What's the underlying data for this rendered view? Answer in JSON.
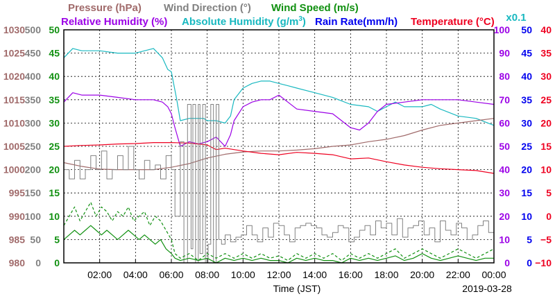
{
  "colors": {
    "pressure": "#a06a6a",
    "wind_direction": "#808080",
    "wind_speed": "#109010",
    "relative_humidity": "#9b00e6",
    "absolute_humidity": "#18b8c0",
    "rain_rate": "#0000ee",
    "temperature": "#ee0020",
    "grid": "#000000"
  },
  "legend": {
    "pressure": "Pressure (hPa)",
    "wind_direction": "Wind Direction (°)",
    "wind_speed": "Wind Speed (m/s)",
    "relative_humidity": "Relative Humidity (%)",
    "absolute_humidity_prefix": "Absolute Humidity (g/m",
    "absolute_humidity_sup": "3",
    "absolute_humidity_suffix": ")",
    "rain_rate": "Rain Rate(mm/h)",
    "temperature": "Temperature  (°C)",
    "rain_multiplier": "x0.1"
  },
  "x_title": "Time (JST)",
  "date_label": "2019-03-28",
  "chart_data": {
    "type": "line",
    "x_unit": "hour",
    "xlim": [
      0,
      24
    ],
    "x_ticks": [
      2,
      4,
      6,
      8,
      10,
      12,
      14,
      16,
      18,
      20,
      22,
      24
    ],
    "x_tick_labels": [
      "02:00",
      "04:00",
      "06:00",
      "08:00",
      "10:00",
      "12:00",
      "14:00",
      "16:00",
      "18:00",
      "20:00",
      "22:00",
      "00:00"
    ],
    "grid": true,
    "axes": {
      "pressure": {
        "side": "left",
        "range": [
          980,
          1030
        ],
        "ticks": [
          "980",
          "985",
          "990",
          "995",
          "1000",
          "1005",
          "1010",
          "1015",
          "1020",
          "1025",
          "1030"
        ]
      },
      "wind_direction": {
        "side": "left",
        "range": [
          0,
          500
        ],
        "ticks": [
          "0",
          "50",
          "100",
          "150",
          "200",
          "250",
          "300",
          "350",
          "400",
          "450",
          "500"
        ]
      },
      "wind_speed": {
        "side": "left",
        "range": [
          0,
          50
        ],
        "ticks": [
          "0",
          "5",
          "10",
          "15",
          "20",
          "25",
          "30",
          "35",
          "40",
          "45",
          "50"
        ]
      },
      "relative_humidity": {
        "side": "right",
        "range": [
          0,
          100
        ],
        "ticks": [
          "0",
          "10",
          "20",
          "30",
          "40",
          "50",
          "60",
          "70",
          "80",
          "90",
          "100"
        ]
      },
      "rain_rate": {
        "side": "right",
        "range": [
          0,
          50
        ],
        "ticks": [
          "0",
          "5",
          "10",
          "15",
          "20",
          "25",
          "30",
          "35",
          "40",
          "45",
          "50"
        ]
      },
      "temperature": {
        "side": "right",
        "range": [
          -10,
          40
        ],
        "ticks": [
          "−10",
          "−5",
          "0",
          "5",
          "10",
          "15",
          "20",
          "25",
          "30",
          "35",
          "40"
        ]
      }
    },
    "series": [
      {
        "name": "Absolute Humidity (g/m3)",
        "key": "absolute_humidity",
        "axis": "relative_humidity",
        "style": "solid",
        "x": [
          0,
          0.5,
          1,
          2,
          3,
          4,
          5,
          5.5,
          5.8,
          6,
          6.3,
          6.5,
          7,
          7.5,
          7.8,
          8,
          8.5,
          9,
          9.3,
          9.5,
          10,
          10.5,
          11,
          11.5,
          12,
          12.5,
          13,
          14,
          15,
          16,
          17,
          17.5,
          18,
          18.5,
          19,
          20,
          20.5,
          21,
          22,
          23,
          24
        ],
        "y": [
          88,
          92,
          91,
          91,
          90,
          90,
          92,
          88,
          83,
          82,
          70,
          61,
          62,
          62,
          62,
          61,
          61,
          60,
          63,
          70,
          75,
          77,
          78,
          78,
          77,
          76,
          75,
          73,
          71,
          68,
          67,
          65,
          67,
          69,
          67,
          67,
          68,
          66,
          63,
          62,
          59
        ]
      },
      {
        "name": "Relative Humidity (%)",
        "key": "relative_humidity",
        "axis": "relative_humidity",
        "style": "solid",
        "x": [
          0,
          0.5,
          1,
          2,
          3,
          4,
          5,
          5.5,
          5.8,
          6,
          6.2,
          6.5,
          7,
          7.5,
          8,
          8.5,
          9,
          9.3,
          9.5,
          10,
          10.5,
          11,
          11.5,
          12,
          12.5,
          13,
          14,
          15,
          15.5,
          16,
          16.5,
          17,
          17.5,
          18,
          19,
          20,
          21,
          22,
          23,
          24
        ],
        "y": [
          69,
          73,
          72,
          72,
          71,
          70,
          70,
          69,
          67,
          64,
          58,
          50,
          52,
          51,
          52,
          54,
          50,
          55,
          61,
          67,
          69,
          70,
          70,
          72,
          69,
          66,
          65,
          64,
          61,
          58,
          57,
          60,
          65,
          68,
          69,
          70,
          70,
          70,
          69,
          68
        ]
      },
      {
        "name": "Pressure (hPa)",
        "key": "pressure",
        "axis": "pressure",
        "style": "solid",
        "x": [
          0,
          1,
          2,
          3,
          4,
          5,
          6,
          7,
          8,
          9,
          10,
          11,
          12,
          13,
          14,
          15,
          16,
          17,
          18,
          19,
          20,
          21,
          22,
          23,
          24
        ],
        "y": [
          1001.5,
          1000.7,
          1000.1,
          1000,
          1000,
          1000,
          1000.5,
          1001.3,
          1002.5,
          1003.3,
          1003.8,
          1004,
          1004,
          1004.2,
          1004.5,
          1005,
          1005.3,
          1006,
          1006.5,
          1007.3,
          1008.5,
          1009.5,
          1010,
          1010.5,
          1011
        ]
      },
      {
        "name": "Temperature (°C)",
        "key": "temperature",
        "axis": "temperature",
        "style": "solid",
        "x": [
          0,
          1,
          2,
          3,
          4,
          5,
          6,
          7,
          8,
          8.5,
          9,
          10,
          11,
          12,
          13,
          14,
          15,
          16,
          17,
          18,
          19,
          20,
          21,
          22,
          23,
          24
        ],
        "y": [
          15,
          15.2,
          15.3,
          15.5,
          15.6,
          15.8,
          15.8,
          15.7,
          15.3,
          14.3,
          14.6,
          14,
          13.5,
          13.2,
          13.7,
          13.5,
          13.2,
          12.3,
          12.5,
          11.7,
          11,
          10.5,
          10.2,
          10,
          9.8,
          9.2
        ]
      },
      {
        "name": "Wind Direction (°)",
        "key": "wind_direction",
        "axis": "wind_direction",
        "style": "step",
        "x": [
          0,
          0.3,
          0.6,
          0.9,
          1.2,
          1.5,
          1.8,
          2.1,
          2.4,
          2.7,
          3,
          3.3,
          3.6,
          3.9,
          4.2,
          4.5,
          4.8,
          5.1,
          5.4,
          5.7,
          6,
          6.2,
          6.5,
          6.7,
          6.9,
          7.1,
          7.2,
          7.35,
          7.5,
          7.6,
          7.75,
          7.9,
          8.05,
          8.2,
          8.35,
          8.5,
          8.65,
          8.8,
          9,
          9.3,
          9.6,
          9.9,
          10.2,
          10.5,
          10.8,
          11.1,
          11.4,
          11.7,
          12,
          12.3,
          12.6,
          12.9,
          13.2,
          13.5,
          13.8,
          14.1,
          14.4,
          14.7,
          15,
          15.3,
          15.6,
          15.9,
          16.2,
          16.5,
          16.8,
          17.1,
          17.4,
          17.7,
          18,
          18.3,
          18.6,
          18.9,
          19.2,
          19.5,
          19.8,
          20.1,
          20.4,
          20.7,
          21,
          21.3,
          21.6,
          21.9,
          22.2,
          22.5,
          22.8,
          23.1,
          23.4,
          23.7,
          24
        ],
        "y": [
          200,
          180,
          220,
          180,
          200,
          230,
          200,
          240,
          180,
          200,
          230,
          200,
          250,
          200,
          180,
          220,
          200,
          210,
          180,
          230,
          200,
          100,
          260,
          0,
          340,
          30,
          340,
          0,
          340,
          20,
          340,
          0,
          40,
          340,
          0,
          340,
          50,
          40,
          60,
          45,
          55,
          60,
          80,
          60,
          45,
          75,
          55,
          85,
          80,
          60,
          45,
          75,
          80,
          85,
          80,
          75,
          60,
          55,
          65,
          80,
          75,
          45,
          55,
          70,
          80,
          60,
          90,
          75,
          85,
          60,
          95,
          55,
          75,
          80,
          90,
          60,
          75,
          45,
          90,
          70,
          60,
          85,
          75,
          50,
          60,
          80,
          90,
          65,
          85
        ]
      },
      {
        "name": "Wind Speed (m/s) max",
        "key": "wind_speed",
        "axis": "wind_speed",
        "style": "dashed",
        "x": [
          0,
          0.3,
          0.6,
          0.9,
          1.2,
          1.5,
          1.8,
          2.1,
          2.4,
          2.7,
          3,
          3.3,
          3.6,
          3.9,
          4.2,
          4.5,
          4.8,
          5.1,
          5.4,
          5.7,
          6,
          6.2,
          6.5,
          7,
          7.5,
          8,
          8.5,
          9,
          9.5,
          10,
          10.5,
          11,
          11.5,
          12,
          12.5,
          13,
          13.5,
          14,
          14.5,
          15,
          15.5,
          16,
          16.5,
          17,
          17.5,
          18,
          18.5,
          19,
          19.5,
          20,
          20.5,
          21,
          21.5,
          22,
          22.5,
          23,
          23.5,
          24
        ],
        "y": [
          8,
          10,
          12,
          9,
          11,
          13,
          10,
          12,
          11,
          9,
          11,
          10,
          12,
          9,
          10,
          11,
          8,
          10,
          9,
          7,
          5,
          2,
          1,
          2,
          0.5,
          2,
          1,
          2,
          1,
          2,
          1,
          2,
          1,
          1.5,
          0.5,
          2,
          1,
          2,
          1,
          2,
          0.5,
          2,
          1,
          2,
          1,
          2,
          3,
          1,
          2,
          3,
          2,
          1,
          2,
          3,
          2,
          1,
          2,
          3
        ]
      },
      {
        "name": "Wind Speed (m/s)",
        "key": "wind_speed",
        "axis": "wind_speed",
        "style": "solid",
        "x": [
          0,
          0.3,
          0.6,
          0.9,
          1.2,
          1.5,
          1.8,
          2.1,
          2.4,
          2.7,
          3,
          3.3,
          3.6,
          3.9,
          4.2,
          4.5,
          4.8,
          5.1,
          5.4,
          5.7,
          6,
          6.2,
          6.5,
          7,
          7.5,
          8,
          8.5,
          9,
          9.5,
          10,
          10.5,
          11,
          11.5,
          12,
          12.5,
          13,
          13.5,
          14,
          14.5,
          15,
          15.5,
          16,
          16.5,
          17,
          17.5,
          18,
          18.5,
          19,
          19.5,
          20,
          20.5,
          21,
          21.5,
          22,
          22.5,
          23,
          23.5,
          24
        ],
        "y": [
          5,
          6,
          7,
          6,
          7,
          8,
          7,
          6,
          7,
          6,
          5,
          6,
          7,
          6,
          5,
          6,
          5,
          4,
          5,
          3,
          2,
          1,
          0.5,
          1,
          0.5,
          1,
          0,
          1,
          0.5,
          1,
          0.5,
          1,
          0.5,
          0.5,
          0,
          1,
          0.5,
          1,
          0.5,
          0.5,
          0,
          1,
          0.5,
          1,
          0.5,
          1,
          1.5,
          0.5,
          1,
          2,
          1,
          0.5,
          1,
          1.5,
          1,
          0.5,
          1,
          1
        ]
      }
    ]
  }
}
